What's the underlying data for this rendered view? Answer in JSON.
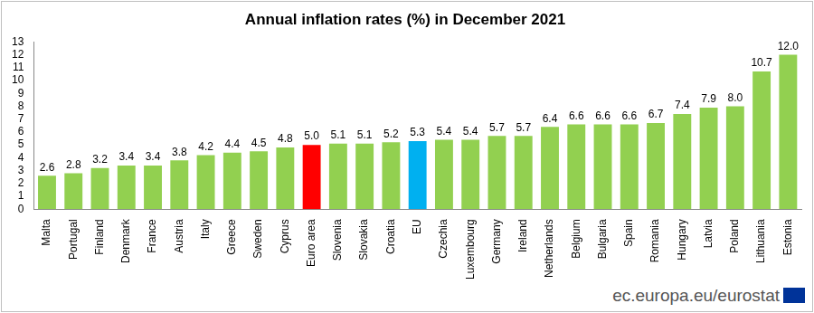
{
  "chart_data": {
    "type": "bar",
    "title": "Annual inflation rates (%) in December 2021",
    "source": "ec.europa.eu/eurostat",
    "categories": [
      "Malta",
      "Portugal",
      "Finland",
      "Denmark",
      "France",
      "Austria",
      "Italy",
      "Greece",
      "Sweden",
      "Cyprus",
      "Euro area",
      "Slovenia",
      "Slovakia",
      "Croatia",
      "EU",
      "Czechia",
      "Luxembourg",
      "Germany",
      "Ireland",
      "Netherlands",
      "Belgium",
      "Bulgaria",
      "Spain",
      "Romania",
      "Hungary",
      "Latvia",
      "Poland",
      "Lithuania",
      "Estonia"
    ],
    "values": [
      2.6,
      2.8,
      3.2,
      3.4,
      3.4,
      3.8,
      4.2,
      4.4,
      4.5,
      4.8,
      5.0,
      5.1,
      5.1,
      5.2,
      5.3,
      5.4,
      5.4,
      5.7,
      5.7,
      6.4,
      6.6,
      6.6,
      6.6,
      6.7,
      7.4,
      7.9,
      8.0,
      10.7,
      12.0
    ],
    "value_labels": [
      "2.6",
      "2.8",
      "3.2",
      "3.4",
      "3.4",
      "3.8",
      "4.2",
      "4.4",
      "4.5",
      "4.8",
      "5.0",
      "5.1",
      "5.1",
      "5.2",
      "5.3",
      "5.4",
      "5.4",
      "5.7",
      "5.7",
      "6.4",
      "6.6",
      "6.6",
      "6.6",
      "6.7",
      "7.4",
      "7.9",
      "8.0",
      "10.7",
      "12.0"
    ],
    "colors": [
      "#92d050",
      "#92d050",
      "#92d050",
      "#92d050",
      "#92d050",
      "#92d050",
      "#92d050",
      "#92d050",
      "#92d050",
      "#92d050",
      "#ff0000",
      "#92d050",
      "#92d050",
      "#92d050",
      "#00b0f0",
      "#92d050",
      "#92d050",
      "#92d050",
      "#92d050",
      "#92d050",
      "#92d050",
      "#92d050",
      "#92d050",
      "#92d050",
      "#92d050",
      "#92d050",
      "#92d050",
      "#92d050",
      "#92d050"
    ],
    "ylim": [
      0,
      13
    ],
    "yticks": [
      0,
      1,
      2,
      3,
      4,
      5,
      6,
      7,
      8,
      9,
      10,
      11,
      12,
      13
    ],
    "grid": false,
    "data_labels": true
  }
}
